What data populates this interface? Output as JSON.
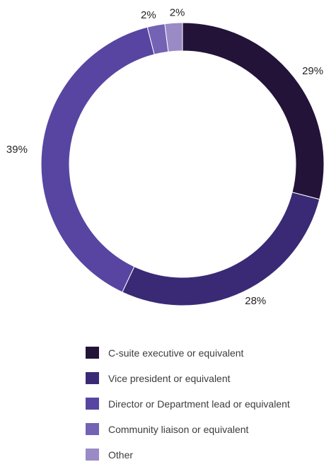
{
  "chart_data": {
    "type": "pie",
    "donut": true,
    "labels": [
      "C-suite executive or equivalent",
      "Vice president or equivalent",
      "Director or Department lead or equivalent",
      "Community liaison or equivalent",
      "Other"
    ],
    "values": [
      29,
      28,
      39,
      2,
      2
    ],
    "value_labels": [
      "29%",
      "28%",
      "39%",
      "2%",
      "2%"
    ],
    "colors": [
      "#231339",
      "#3a2a75",
      "#5845a1",
      "#7462b4",
      "#9a8ac6"
    ],
    "legend_placement": "bottom"
  }
}
